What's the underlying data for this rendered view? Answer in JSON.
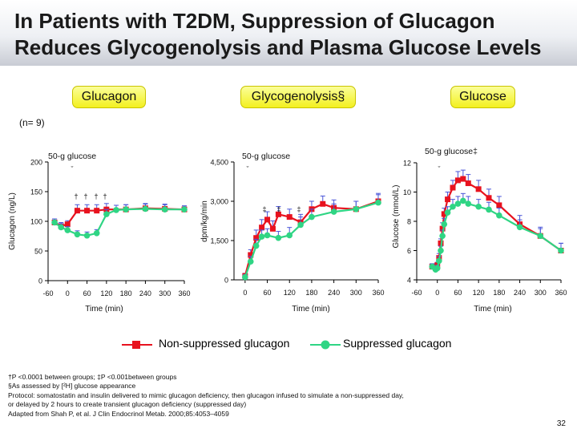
{
  "title": "In Patients with T2DM, Suppression of Glucagon Reduces Glycogenolysis and Plasma Glucose Levels",
  "panel_headers": [
    "Glucagon",
    "Glycogenolysis§",
    "Glucose"
  ],
  "n_label": "(n= 9)",
  "legend": {
    "nonsuppressed": "Non-suppressed glucagon",
    "suppressed": "Suppressed glucagon"
  },
  "colors": {
    "nonsuppressed": "#e8121e",
    "suppressed": "#2fd584",
    "header_fill": "#f6f226",
    "error_bar": "#4a55d8"
  },
  "footnotes": {
    "line1": "†P <0.0001 between groups; ‡P <0.001between groups",
    "line2": "§As assessed by [²H] glucose appearance",
    "line3": "Protocol: somatostatin and insulin delivered to mimic glucagon deficiency, then glucagon infused to simulate a non-suppressed day,",
    "line4": "or delayed by 2 hours to create transient glucagon deficiency (suppressed day)",
    "line5": "Adapted from Shah P, et al. J Clin Endocrinol Metab. 2000;85:4053–4059"
  },
  "page_number": "32",
  "chart_data": [
    {
      "type": "line",
      "title": "Glucagon",
      "xlabel": "Time (min)",
      "ylabel": "Glucagon (ng/L)",
      "xlim": [
        -60,
        360
      ],
      "ylim": [
        0,
        200
      ],
      "xticks": [
        -60,
        0,
        60,
        120,
        180,
        240,
        300,
        360
      ],
      "xtick_labels": [
        "-60",
        "0",
        "60",
        "120",
        "180",
        "240",
        "300",
        "360"
      ],
      "yticks": [
        0,
        50,
        100,
        150,
        200
      ],
      "ytick_labels": [
        "0",
        "50",
        "100",
        "150",
        "200"
      ],
      "annotation": "50-g glucose",
      "significance": [
        "†",
        "†",
        "†",
        "†"
      ],
      "series": [
        {
          "name": "Non-suppressed glucagon",
          "x": [
            -40,
            -20,
            0,
            30,
            60,
            90,
            120,
            180,
            240,
            300,
            360
          ],
          "y": [
            98,
            92,
            95,
            118,
            118,
            118,
            120,
            120,
            122,
            121,
            120
          ],
          "err": [
            6,
            6,
            6,
            10,
            10,
            10,
            10,
            8,
            8,
            8,
            6
          ]
        },
        {
          "name": "Suppressed glucagon",
          "x": [
            -40,
            -20,
            0,
            30,
            60,
            90,
            120,
            150,
            180,
            240,
            300,
            360
          ],
          "y": [
            98,
            90,
            85,
            78,
            76,
            80,
            112,
            119,
            120,
            121,
            120,
            120
          ],
          "err": [
            6,
            6,
            6,
            6,
            6,
            6,
            8,
            8,
            8,
            8,
            8,
            6
          ]
        }
      ]
    },
    {
      "type": "line",
      "title": "Glycogenolysis§",
      "xlabel": "Time (min)",
      "ylabel": "dpm/kg/min",
      "xlim": [
        -30,
        360
      ],
      "ylim": [
        0,
        4500
      ],
      "xticks": [
        0,
        60,
        120,
        180,
        240,
        300,
        360
      ],
      "xtick_labels": [
        "0",
        "60",
        "120",
        "180",
        "240",
        "300",
        "360"
      ],
      "yticks": [
        0,
        1500,
        3000,
        4500
      ],
      "ytick_labels": [
        "0",
        "1,500",
        "3,000",
        "4,500"
      ],
      "annotation": "50-g glucose",
      "significance": [
        "‡",
        "‡",
        "‡"
      ],
      "series": [
        {
          "name": "Non-suppressed glucagon",
          "x": [
            0,
            15,
            30,
            45,
            60,
            75,
            90,
            120,
            150,
            180,
            210,
            240,
            300,
            360
          ],
          "y": [
            150,
            950,
            1600,
            2000,
            2300,
            1950,
            2500,
            2400,
            2200,
            2700,
            2900,
            2750,
            2700,
            3000
          ],
          "err": [
            100,
            200,
            300,
            300,
            300,
            300,
            300,
            300,
            300,
            300,
            300,
            300,
            300,
            300
          ]
        },
        {
          "name": "Suppressed glucagon",
          "x": [
            0,
            15,
            30,
            45,
            60,
            90,
            120,
            150,
            180,
            240,
            300,
            360
          ],
          "y": [
            100,
            700,
            1300,
            1650,
            1700,
            1600,
            1700,
            2100,
            2400,
            2600,
            2700,
            2950
          ],
          "err": [
            100,
            200,
            250,
            250,
            250,
            250,
            300,
            300,
            300,
            300,
            300,
            300
          ]
        }
      ]
    },
    {
      "type": "line",
      "title": "Glucose",
      "xlabel": "Time (min)",
      "ylabel": "Glucose (mmol/L)",
      "xlim": [
        -60,
        360
      ],
      "ylim": [
        4,
        12
      ],
      "xticks": [
        -60,
        0,
        60,
        120,
        180,
        240,
        300,
        360
      ],
      "xtick_labels": [
        "-60",
        "0",
        "60",
        "120",
        "180",
        "240",
        "300",
        "360"
      ],
      "yticks": [
        4,
        6,
        8,
        10,
        12
      ],
      "ytick_labels": [
        "4",
        "6",
        "8",
        "10",
        "12"
      ],
      "annotation": "50-g glucose‡",
      "series": [
        {
          "name": "Non-suppressed glucagon",
          "x": [
            -15,
            -5,
            0,
            5,
            10,
            15,
            20,
            30,
            45,
            60,
            75,
            90,
            120,
            150,
            180,
            240,
            300,
            360
          ],
          "y": [
            4.9,
            4.8,
            5.0,
            5.5,
            6.5,
            7.5,
            8.5,
            9.5,
            10.3,
            10.8,
            10.9,
            10.6,
            10.2,
            9.6,
            9.1,
            7.8,
            7.0,
            6.0
          ],
          "err": [
            0.2,
            0.2,
            0.2,
            0.3,
            0.3,
            0.4,
            0.4,
            0.5,
            0.5,
            0.6,
            0.6,
            0.6,
            0.6,
            0.6,
            0.6,
            0.6,
            0.6,
            0.5
          ]
        },
        {
          "name": "Suppressed glucagon",
          "x": [
            -15,
            -5,
            0,
            5,
            10,
            15,
            20,
            30,
            45,
            60,
            75,
            90,
            120,
            150,
            180,
            240,
            300,
            360
          ],
          "y": [
            4.9,
            4.7,
            4.8,
            5.3,
            6.0,
            7.0,
            7.8,
            8.6,
            9.0,
            9.2,
            9.4,
            9.2,
            9.0,
            8.8,
            8.4,
            7.6,
            7.0,
            6.0
          ],
          "err": [
            0.2,
            0.2,
            0.2,
            0.3,
            0.3,
            0.4,
            0.4,
            0.4,
            0.5,
            0.5,
            0.5,
            0.5,
            0.5,
            0.5,
            0.5,
            0.5,
            0.5,
            0.5
          ]
        }
      ]
    }
  ]
}
